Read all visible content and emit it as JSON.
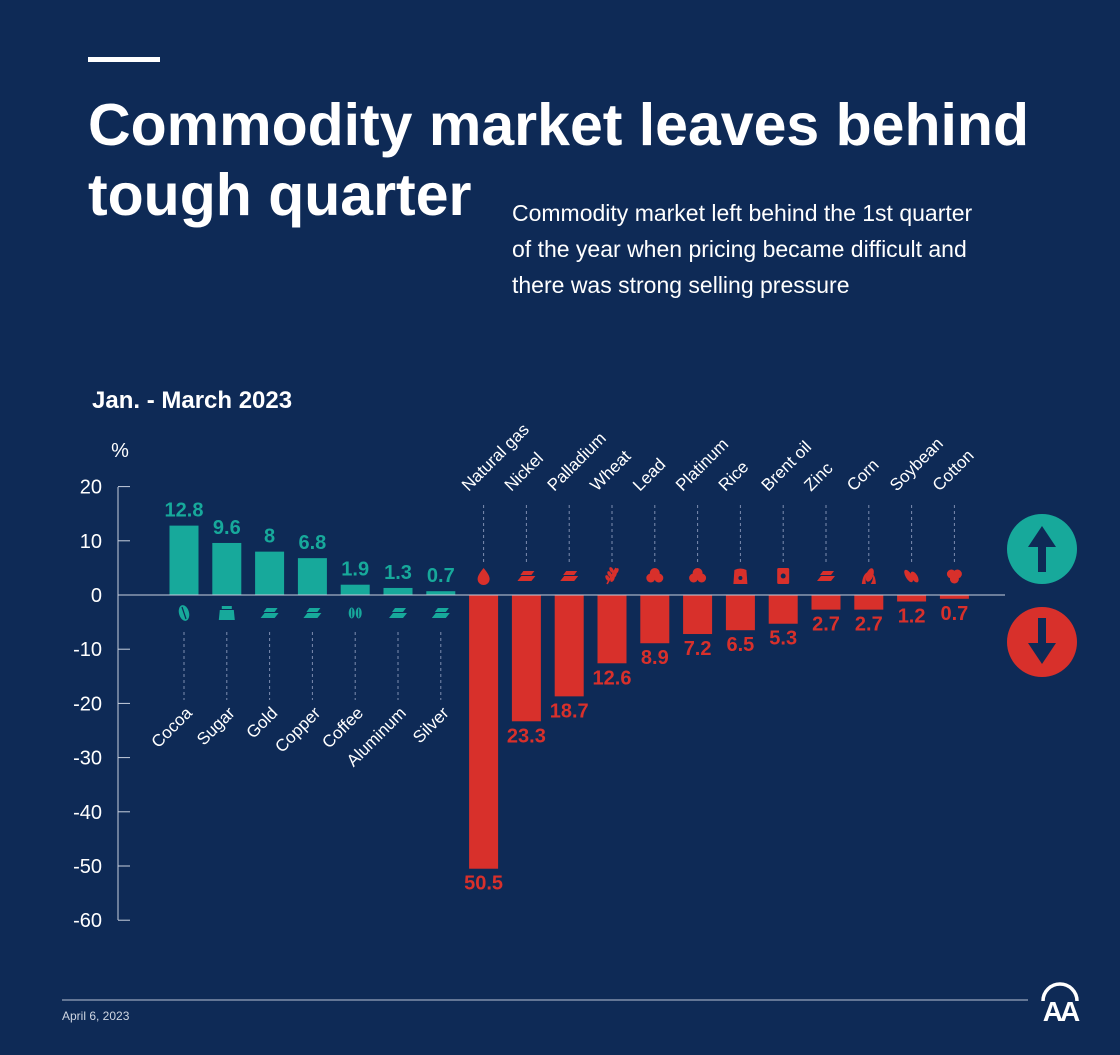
{
  "colors": {
    "background": "#0e2a56",
    "text": "#ffffff",
    "axis": "#c8d0de",
    "dashed": "#7d8db0",
    "footer_line": "#b8c2d4",
    "footer_text": "#d0d7e3"
  },
  "chart_data": {
    "type": "bar",
    "title": "Commodity market leaves behind tough quarter",
    "subtitle": "Commodity market left behind the 1st quarter of the year when pricing became difficult and there was strong selling pressure",
    "period": "Jan. - March 2023",
    "ylabel": "%",
    "ylim": [
      -60,
      20
    ],
    "yticks": [
      20,
      10,
      0,
      -10,
      -20,
      -30,
      -40,
      -50,
      -60
    ],
    "grid": false,
    "categories": [
      "Cocoa",
      "Sugar",
      "Gold",
      "Copper",
      "Coffee",
      "Aluminum",
      "Silver",
      "Natural gas",
      "Nickel",
      "Palladium",
      "Wheat",
      "Lead",
      "Platinum",
      "Rice",
      "Brent oil",
      "Zinc",
      "Corn",
      "Soybean",
      "Cotton"
    ],
    "values": [
      12.8,
      9.6,
      8,
      6.8,
      1.9,
      1.3,
      0.7,
      -50.5,
      -23.3,
      -18.7,
      -12.6,
      -8.9,
      -7.2,
      -6.5,
      -5.3,
      -2.7,
      -2.7,
      -1.2,
      -0.7
    ],
    "value_labels": [
      "12.8",
      "9.6",
      "8",
      "6.8",
      "1.9",
      "1.3",
      "0.7",
      "50.5",
      "23.3",
      "18.7",
      "12.6",
      "8.9",
      "7.2",
      "6.5",
      "5.3",
      "2.7",
      "2.7",
      "1.2",
      "0.7"
    ],
    "icons": [
      "cocoa-icon",
      "sugar-icon",
      "gold-icon",
      "copper-icon",
      "coffee-icon",
      "aluminum-icon",
      "silver-icon",
      "natural-gas-icon",
      "nickel-icon",
      "palladium-icon",
      "wheat-icon",
      "lead-icon",
      "platinum-icon",
      "rice-icon",
      "brent-oil-icon",
      "zinc-icon",
      "corn-icon",
      "soybean-icon",
      "cotton-icon"
    ],
    "colors": {
      "positive": "#17a99b",
      "negative": "#d8302b"
    },
    "indicators": [
      {
        "icon": "arrow-up-icon",
        "color": "#17a99b"
      },
      {
        "icon": "arrow-down-icon",
        "color": "#d8302b"
      }
    ]
  },
  "footer": {
    "date": "April 6, 2023",
    "logo_text": "AA"
  }
}
